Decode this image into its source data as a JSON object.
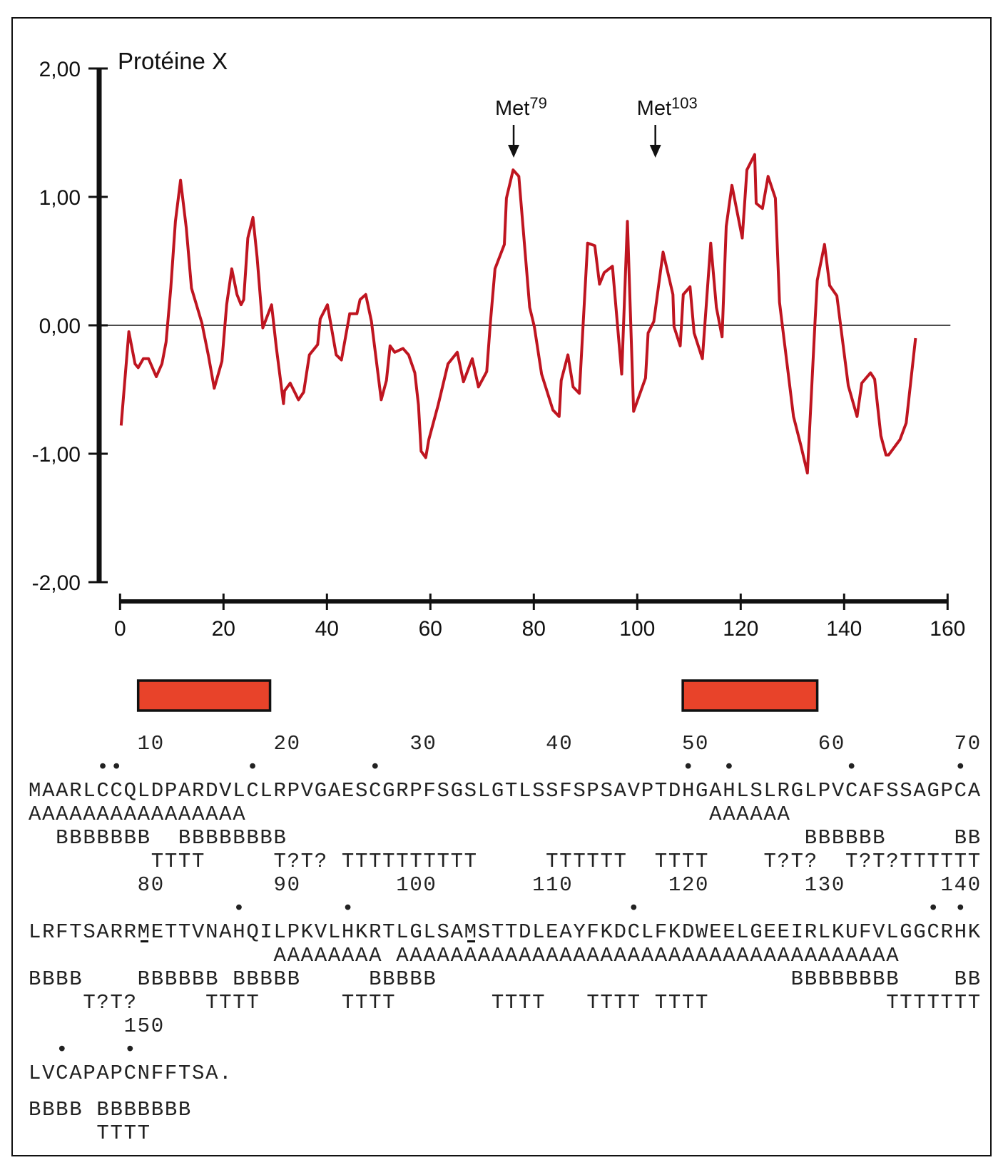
{
  "chart_data": {
    "type": "line",
    "title": "Protéine X",
    "xlabel": "",
    "ylabel": "",
    "xlim": [
      0,
      160
    ],
    "ylim": [
      -2,
      2
    ],
    "x_ticks": [
      0,
      20,
      40,
      60,
      80,
      100,
      120,
      140,
      160
    ],
    "x_tick_labels": [
      "0",
      "20",
      "40",
      "60",
      "80",
      "100",
      "120",
      "140",
      "160"
    ],
    "y_ticks": [
      2,
      1,
      0,
      -1,
      -2
    ],
    "y_tick_labels": [
      "2,00",
      "1,00",
      "0,00",
      "-1,00",
      "-2,00"
    ],
    "grid": false,
    "reference_line_y": 0,
    "series_color": "#bf1520",
    "series": [
      {
        "name": "Protéine X",
        "points": [
          [
            0.2,
            -0.78
          ],
          [
            1.7,
            -0.05
          ],
          [
            2.9,
            -0.3
          ],
          [
            3.5,
            -0.33
          ],
          [
            4.5,
            -0.26
          ],
          [
            5.5,
            -0.26
          ],
          [
            7.0,
            -0.4
          ],
          [
            8.1,
            -0.3
          ],
          [
            8.9,
            -0.13
          ],
          [
            9.8,
            0.29
          ],
          [
            10.7,
            0.81
          ],
          [
            11.7,
            1.13
          ],
          [
            12.8,
            0.76
          ],
          [
            13.8,
            0.29
          ],
          [
            15.8,
            0.02
          ],
          [
            17.1,
            -0.24
          ],
          [
            18.2,
            -0.49
          ],
          [
            19.7,
            -0.28
          ],
          [
            20.6,
            0.16
          ],
          [
            21.6,
            0.44
          ],
          [
            22.6,
            0.24
          ],
          [
            23.4,
            0.16
          ],
          [
            23.9,
            0.2
          ],
          [
            24.7,
            0.68
          ],
          [
            25.7,
            0.84
          ],
          [
            26.5,
            0.53
          ],
          [
            27.6,
            -0.02
          ],
          [
            29.3,
            0.16
          ],
          [
            30.2,
            -0.17
          ],
          [
            31.6,
            -0.61
          ],
          [
            31.8,
            -0.51
          ],
          [
            32.9,
            -0.45
          ],
          [
            34.5,
            -0.58
          ],
          [
            35.5,
            -0.52
          ],
          [
            36.6,
            -0.23
          ],
          [
            38.2,
            -0.15
          ],
          [
            38.7,
            0.05
          ],
          [
            40.1,
            0.16
          ],
          [
            41.8,
            -0.23
          ],
          [
            42.8,
            -0.27
          ],
          [
            44.4,
            0.09
          ],
          [
            45.8,
            0.09
          ],
          [
            46.4,
            0.2
          ],
          [
            47.5,
            0.24
          ],
          [
            48.6,
            0.03
          ],
          [
            50.5,
            -0.58
          ],
          [
            51.5,
            -0.43
          ],
          [
            52.2,
            -0.16
          ],
          [
            53.1,
            -0.21
          ],
          [
            54.7,
            -0.18
          ],
          [
            55.8,
            -0.23
          ],
          [
            57.0,
            -0.37
          ],
          [
            57.7,
            -0.62
          ],
          [
            58.2,
            -0.98
          ],
          [
            59.1,
            -1.03
          ],
          [
            59.7,
            -0.89
          ],
          [
            61.5,
            -0.62
          ],
          [
            63.4,
            -0.3
          ],
          [
            65.2,
            -0.21
          ],
          [
            66.4,
            -0.44
          ],
          [
            68.1,
            -0.26
          ],
          [
            69.3,
            -0.48
          ],
          [
            70.9,
            -0.36
          ],
          [
            71.6,
            0.02
          ],
          [
            72.5,
            0.44
          ],
          [
            74.3,
            0.63
          ],
          [
            74.7,
            0.99
          ],
          [
            76.0,
            1.21
          ],
          [
            77.1,
            1.16
          ],
          [
            79.2,
            0.14
          ],
          [
            80.1,
            -0.01
          ],
          [
            81.5,
            -0.38
          ],
          [
            83.7,
            -0.66
          ],
          [
            84.9,
            -0.71
          ],
          [
            85.3,
            -0.43
          ],
          [
            86.6,
            -0.23
          ],
          [
            87.6,
            -0.48
          ],
          [
            88.8,
            -0.53
          ],
          [
            90.4,
            0.64
          ],
          [
            91.8,
            0.62
          ],
          [
            92.7,
            0.32
          ],
          [
            93.6,
            0.41
          ],
          [
            95.2,
            0.46
          ],
          [
            97.0,
            -0.38
          ],
          [
            98.1,
            0.81
          ],
          [
            99.3,
            -0.67
          ],
          [
            101.6,
            -0.41
          ],
          [
            102.1,
            -0.06
          ],
          [
            103.2,
            0.03
          ],
          [
            105.0,
            0.57
          ],
          [
            106.9,
            0.24
          ],
          [
            107.1,
            -0.01
          ],
          [
            108.3,
            -0.16
          ],
          [
            108.9,
            0.24
          ],
          [
            110.2,
            0.3
          ],
          [
            111.0,
            -0.06
          ],
          [
            112.6,
            -0.26
          ],
          [
            114.2,
            0.64
          ],
          [
            115.3,
            0.14
          ],
          [
            116.4,
            -0.09
          ],
          [
            117.2,
            0.77
          ],
          [
            118.3,
            1.09
          ],
          [
            120.3,
            0.68
          ],
          [
            121.2,
            1.21
          ],
          [
            122.7,
            1.33
          ],
          [
            123.0,
            0.95
          ],
          [
            124.2,
            0.91
          ],
          [
            125.3,
            1.16
          ],
          [
            126.7,
            0.99
          ],
          [
            127.5,
            0.18
          ],
          [
            130.2,
            -0.71
          ],
          [
            131.6,
            -0.93
          ],
          [
            132.9,
            -1.15
          ],
          [
            134.4,
            0.05
          ],
          [
            134.8,
            0.35
          ],
          [
            136.2,
            0.63
          ],
          [
            137.2,
            0.31
          ],
          [
            138.6,
            0.23
          ],
          [
            140.8,
            -0.47
          ],
          [
            142.5,
            -0.71
          ],
          [
            143.4,
            -0.45
          ],
          [
            145.1,
            -0.37
          ],
          [
            145.9,
            -0.42
          ],
          [
            147.1,
            -0.86
          ],
          [
            148.1,
            -1.01
          ],
          [
            148.6,
            -1.01
          ],
          [
            150.8,
            -0.89
          ],
          [
            152.0,
            -0.76
          ],
          [
            153.8,
            -0.1
          ]
        ]
      }
    ],
    "annotations": [
      {
        "label": "Met",
        "superscript": "79",
        "x": 76.1
      },
      {
        "label": "Met",
        "superscript": "103",
        "x": 103.5
      }
    ],
    "regions": [
      {
        "start": 3.5,
        "end": 29.0,
        "color": "#e8432a"
      },
      {
        "start": 108.8,
        "end": 134.8,
        "color": "#e8432a"
      }
    ]
  },
  "sequence": {
    "underlined_residues": [
      79,
      103
    ],
    "blocks": [
      {
        "numbers": "        10        20        30        40        50        60        70",
        "dots": "     ••         •        •                      •  •        •       •",
        "residues": "MAARLCCQLDPARDVLCLRPVGAESCGRPFSGSLGTLSSFSPSAVPTDHGAHLSLRGLPVCAFSSAGPCA",
        "helix": "AAAAAAAAAAAAAAAA                                  AAAAAA",
        "sheet": "  BBBBBBB  BBBBBBBB                                      BBBBBB     BB",
        "turn": "         TTTT     T?T? TTTTTTTTTT     TTTTTT  TTTT    T?T?  T?T?TTTTTT"
      },
      {
        "numbers": "        80        90       100       110       120       130       140",
        "dots": "               •       •                    •                     • •",
        "residues": "LRFTSARRMETTVNAHQILPKVLHKRTLGLSAMSTTDLEAYFKDCLFKDWEELGEEIRLKUFVLGGCRHK",
        "helix": "                  AAAAAAAA AAAAAAAAAAAAAAAAAAAAAAAAAAAAAAAAAAAAA",
        "sheet": "BBBB    BBBBBB BBBBB     BBBBB                          BBBBBBBB    BB",
        "turn": "    T?T?     TTTT      TTTT       TTTT   TTTT TTTT             TTTTTTT"
      },
      {
        "numbers": "       150",
        "dots": "  •    •",
        "residues": "LVCAPAPCNFFTSA.",
        "sheet": "BBBB BBBBBBB",
        "turn": "     TTTT"
      }
    ]
  }
}
